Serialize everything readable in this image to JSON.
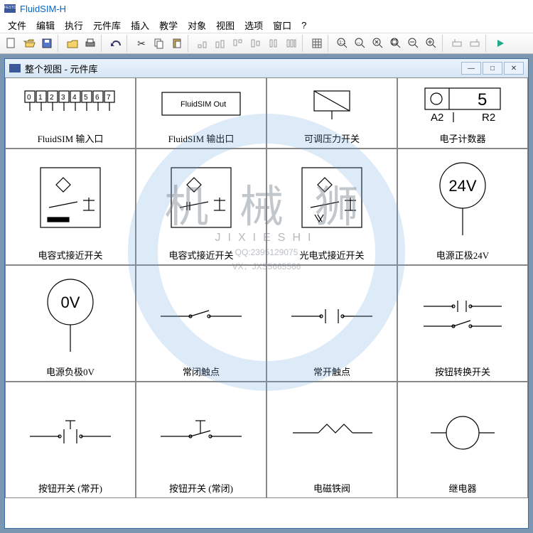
{
  "app": {
    "title": "FluidSIM-H"
  },
  "menu": [
    "文件",
    "编辑",
    "执行",
    "元件库",
    "插入",
    "教学",
    "对象",
    "视图",
    "选项",
    "窗口",
    "?"
  ],
  "childwin": {
    "title": "整个视图 - 元件库"
  },
  "watermark": {
    "big": "机 械 狮",
    "sub": "JIXIESHI",
    "line1": "QQ:2395129075",
    "line2": "VX：JXS5665566"
  },
  "components": {
    "row0": [
      {
        "label": "FluidSIM 输入口",
        "icon": "digits"
      },
      {
        "label": "FluidSIM 输出口",
        "icon": "outbox",
        "text": "FluidSIM Out"
      },
      {
        "label": "可调压力开关",
        "icon": "pswitch"
      },
      {
        "label": "电子计数器",
        "icon": "counter",
        "text": "5",
        "a": "A2",
        "r": "R2"
      }
    ],
    "row1": [
      {
        "label": "电容式接近开关",
        "icon": "prox1"
      },
      {
        "label": "电容式接近开关",
        "icon": "prox2"
      },
      {
        "label": "光电式接近开关",
        "icon": "prox3"
      },
      {
        "label": "电源正极24V",
        "icon": "circletxt",
        "text": "24V"
      }
    ],
    "row2": [
      {
        "label": "电源负极0V",
        "icon": "circletxt",
        "text": "0V"
      },
      {
        "label": "常闭触点",
        "icon": "nc"
      },
      {
        "label": "常开触点",
        "icon": "no"
      },
      {
        "label": "按钮转换开关",
        "icon": "changeover"
      }
    ],
    "row3": [
      {
        "label": "按钮开关 (常开)",
        "icon": "pbno"
      },
      {
        "label": "按钮开关 (常闭)",
        "icon": "pbnc"
      },
      {
        "label": "电磁铁阀",
        "icon": "solenoid"
      },
      {
        "label": "继电器",
        "icon": "relay"
      }
    ]
  },
  "colors": {
    "accent": "#0066cc",
    "border": "#888888",
    "wm": "#7a8894"
  }
}
